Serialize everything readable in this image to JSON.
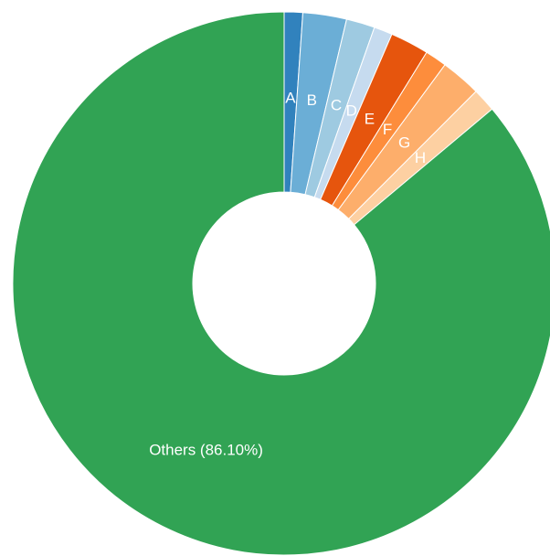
{
  "chart_data": {
    "type": "donut",
    "labels": [
      "A",
      "B",
      "C",
      "D",
      "E",
      "F",
      "G",
      "H",
      "Others (86.10%)"
    ],
    "values": [
      1.1,
      2.6,
      1.7,
      1.1,
      2.3,
      1.3,
      2.4,
      1.4,
      86.1
    ],
    "colors": [
      "#3182bd",
      "#6baed6",
      "#9ecae1",
      "#c6dbef",
      "#e6550d",
      "#fd8d3c",
      "#fdae6b",
      "#fdd0a2",
      "#31a354"
    ]
  }
}
